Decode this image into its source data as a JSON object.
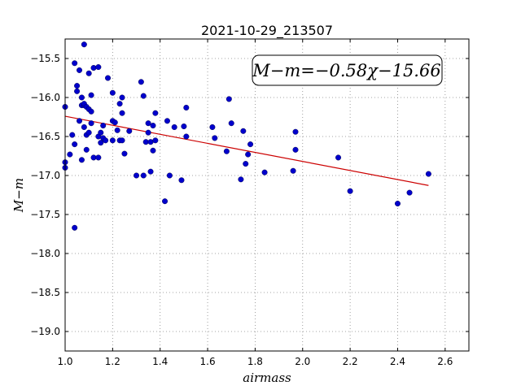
{
  "chart_data": {
    "type": "scatter",
    "title": "2021-10-29_213507",
    "xlabel": "airmass",
    "ylabel": "M−m",
    "xlim": [
      1.0,
      2.7
    ],
    "ylim": [
      -19.25,
      -15.25
    ],
    "x_ticks": [
      1.0,
      1.2,
      1.4,
      1.6,
      1.8,
      2.0,
      2.2,
      2.4,
      2.6
    ],
    "x_tick_labels": [
      "1.0",
      "1.2",
      "1.4",
      "1.6",
      "1.8",
      "2.0",
      "2.2",
      "2.4",
      "2.6"
    ],
    "y_ticks": [
      -15.5,
      -16.0,
      -16.5,
      -17.0,
      -17.5,
      -18.0,
      -18.5,
      -19.0
    ],
    "y_tick_labels": [
      "−15.5",
      "−16.0",
      "−16.5",
      "−17.0",
      "−17.5",
      "−18.0",
      "−18.5",
      "−19.0"
    ],
    "grid": true,
    "annotation": "M−m=−0.58χ−15.66",
    "fit": {
      "slope": -0.58,
      "intercept": -15.66,
      "x_range": [
        1.0,
        2.53
      ]
    },
    "colors": {
      "points": "#0000cc",
      "fit_line": "#cc0000",
      "grid": "#888888"
    },
    "points": [
      [
        1.0,
        -16.12
      ],
      [
        1.0,
        -16.83
      ],
      [
        1.0,
        -16.9
      ],
      [
        1.02,
        -16.73
      ],
      [
        1.03,
        -16.48
      ],
      [
        1.04,
        -16.6
      ],
      [
        1.04,
        -15.56
      ],
      [
        1.04,
        -17.67
      ],
      [
        1.05,
        -15.85
      ],
      [
        1.05,
        -15.92
      ],
      [
        1.06,
        -16.3
      ],
      [
        1.06,
        -15.65
      ],
      [
        1.07,
        -16.1
      ],
      [
        1.07,
        -16.0
      ],
      [
        1.07,
        -16.8
      ],
      [
        1.08,
        -16.1
      ],
      [
        1.08,
        -15.32
      ],
      [
        1.08,
        -16.38
      ],
      [
        1.08,
        -16.08
      ],
      [
        1.09,
        -16.12
      ],
      [
        1.09,
        -16.48
      ],
      [
        1.09,
        -16.67
      ],
      [
        1.1,
        -16.45
      ],
      [
        1.1,
        -15.69
      ],
      [
        1.1,
        -16.15
      ],
      [
        1.11,
        -16.18
      ],
      [
        1.11,
        -15.97
      ],
      [
        1.11,
        -16.33
      ],
      [
        1.12,
        -16.77
      ],
      [
        1.12,
        -15.62
      ],
      [
        1.14,
        -15.61
      ],
      [
        1.14,
        -16.77
      ],
      [
        1.14,
        -16.5
      ],
      [
        1.15,
        -16.45
      ],
      [
        1.15,
        -16.58
      ],
      [
        1.16,
        -16.52
      ],
      [
        1.16,
        -16.36
      ],
      [
        1.17,
        -16.55
      ],
      [
        1.18,
        -15.75
      ],
      [
        1.2,
        -16.55
      ],
      [
        1.2,
        -16.3
      ],
      [
        1.2,
        -15.94
      ],
      [
        1.21,
        -16.32
      ],
      [
        1.22,
        -16.42
      ],
      [
        1.23,
        -16.08
      ],
      [
        1.23,
        -16.55
      ],
      [
        1.24,
        -16.2
      ],
      [
        1.24,
        -16.0
      ],
      [
        1.24,
        -16.55
      ],
      [
        1.25,
        -16.72
      ],
      [
        1.27,
        -16.43
      ],
      [
        1.3,
        -17.0
      ],
      [
        1.32,
        -15.8
      ],
      [
        1.33,
        -17.0
      ],
      [
        1.33,
        -15.98
      ],
      [
        1.34,
        -16.57
      ],
      [
        1.35,
        -16.33
      ],
      [
        1.35,
        -16.45
      ],
      [
        1.36,
        -16.95
      ],
      [
        1.36,
        -16.57
      ],
      [
        1.37,
        -16.68
      ],
      [
        1.37,
        -16.36
      ],
      [
        1.38,
        -16.2
      ],
      [
        1.38,
        -16.55
      ],
      [
        1.42,
        -17.33
      ],
      [
        1.43,
        -16.3
      ],
      [
        1.44,
        -17.0
      ],
      [
        1.46,
        -16.38
      ],
      [
        1.49,
        -17.06
      ],
      [
        1.5,
        -16.37
      ],
      [
        1.51,
        -16.13
      ],
      [
        1.51,
        -16.5
      ],
      [
        1.62,
        -16.38
      ],
      [
        1.63,
        -16.52
      ],
      [
        1.68,
        -16.69
      ],
      [
        1.69,
        -16.02
      ],
      [
        1.7,
        -16.33
      ],
      [
        1.74,
        -17.05
      ],
      [
        1.75,
        -16.43
      ],
      [
        1.76,
        -16.85
      ],
      [
        1.77,
        -16.73
      ],
      [
        1.78,
        -16.6
      ],
      [
        1.84,
        -16.96
      ],
      [
        1.96,
        -16.94
      ],
      [
        1.97,
        -16.44
      ],
      [
        1.97,
        -16.67
      ],
      [
        2.15,
        -16.77
      ],
      [
        2.2,
        -17.2
      ],
      [
        2.4,
        -17.36
      ],
      [
        2.45,
        -17.22
      ],
      [
        2.53,
        -16.98
      ]
    ]
  }
}
